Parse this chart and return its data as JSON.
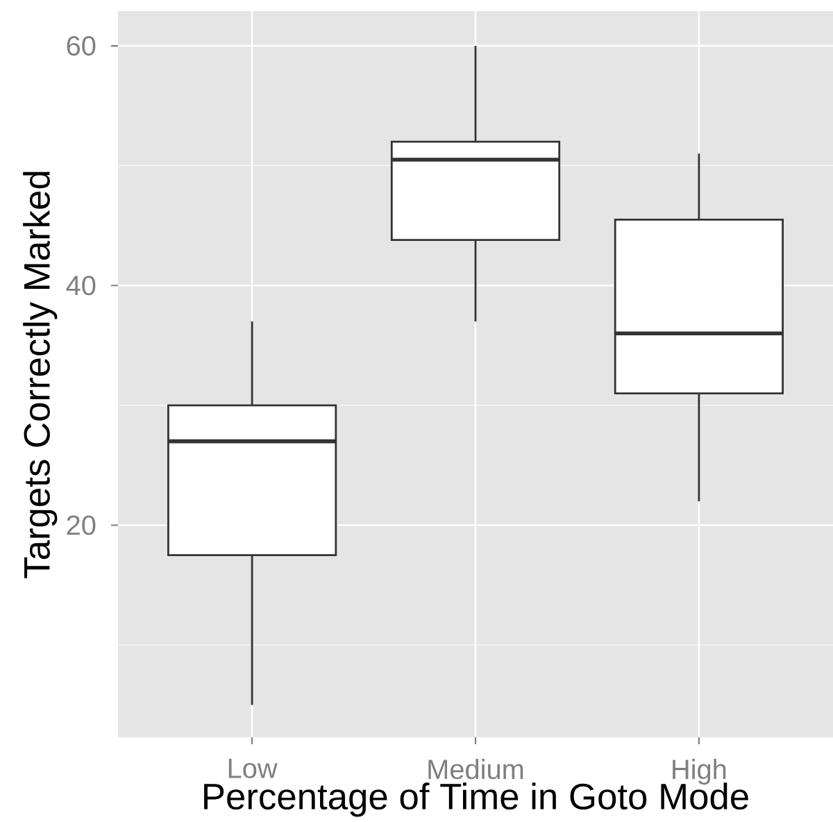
{
  "chart_data": {
    "type": "box",
    "xlabel": "Percentage of Time in Goto Mode",
    "ylabel": "Targets Correctly Marked",
    "categories": [
      "Low",
      "Medium",
      "High"
    ],
    "boxes": [
      {
        "low": 5,
        "q1": 17.5,
        "median": 27,
        "q3": 30,
        "high": 37
      },
      {
        "low": 37,
        "q1": 43.8,
        "median": 50.5,
        "q3": 52,
        "high": 60
      },
      {
        "low": 22,
        "q1": 31,
        "median": 36,
        "q3": 45.5,
        "high": 51
      }
    ],
    "color": "#333333",
    "ylim": [
      2.3,
      62.9
    ],
    "yticks": [
      20,
      40,
      60
    ],
    "grid": true
  }
}
